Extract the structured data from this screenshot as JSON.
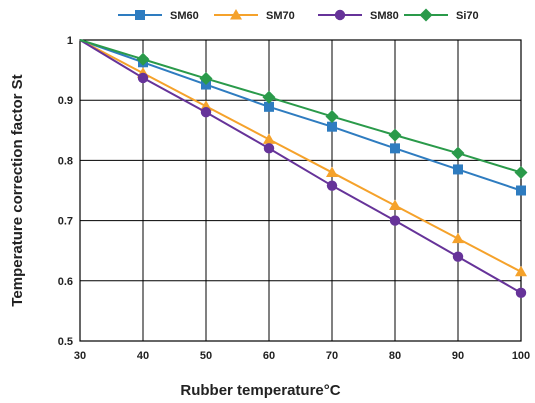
{
  "chart_data": {
    "type": "line",
    "title": "",
    "xlabel": "Rubber temperature°C",
    "ylabel": "Temperature correction factor St",
    "xlim": [
      30,
      100
    ],
    "ylim": [
      0.5,
      1
    ],
    "x_ticks": [
      30,
      40,
      50,
      60,
      70,
      80,
      90,
      100
    ],
    "y_ticks": [
      0.5,
      0.6,
      0.7,
      0.8,
      0.9,
      1
    ],
    "y_tick_labels": [
      "0.5",
      "0.6",
      "0.7",
      "0.8",
      "0.9",
      "1"
    ],
    "grid": true,
    "legend_position": "top",
    "series": [
      {
        "name": "SM60",
        "color": "#2e7cc0",
        "marker": "square",
        "x": [
          30,
          40,
          50,
          60,
          70,
          80,
          90,
          100
        ],
        "values": [
          1.0,
          0.963,
          0.926,
          0.889,
          0.856,
          0.82,
          0.785,
          0.75
        ]
      },
      {
        "name": "SM70",
        "color": "#f5a22b",
        "marker": "triangle",
        "x": [
          30,
          40,
          50,
          60,
          70,
          80,
          90,
          100
        ],
        "values": [
          1.0,
          0.945,
          0.89,
          0.835,
          0.78,
          0.725,
          0.67,
          0.615
        ]
      },
      {
        "name": "SM80",
        "color": "#663399",
        "marker": "circle",
        "x": [
          30,
          40,
          50,
          60,
          70,
          80,
          90,
          100
        ],
        "values": [
          1.0,
          0.937,
          0.88,
          0.82,
          0.758,
          0.7,
          0.64,
          0.58
        ]
      },
      {
        "name": "Si70",
        "color": "#2a9a4a",
        "marker": "diamond",
        "x": [
          30,
          40,
          50,
          60,
          70,
          80,
          90,
          100
        ],
        "values": [
          1.0,
          0.968,
          0.936,
          0.905,
          0.873,
          0.842,
          0.812,
          0.78
        ]
      }
    ]
  }
}
